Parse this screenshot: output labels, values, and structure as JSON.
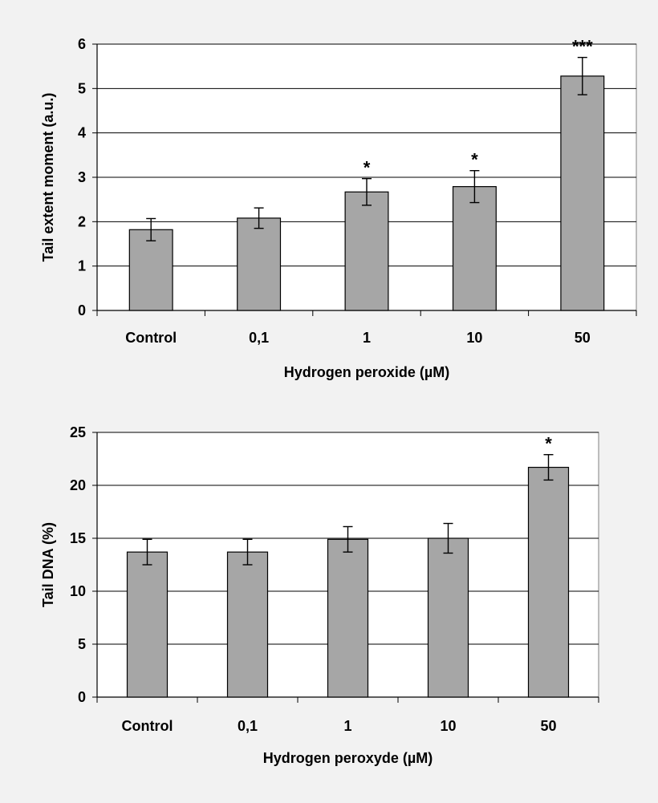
{
  "colors": {
    "background": "#f2f2f2",
    "plot_area": "#ffffff",
    "bar_fill": "#a6a6a6",
    "bar_stroke": "#000000",
    "gridline": "#000000"
  },
  "chart_data": [
    {
      "type": "bar",
      "title": "",
      "categories": [
        "Control",
        "0,1",
        "1",
        "10",
        "50"
      ],
      "values": [
        1.82,
        2.08,
        2.67,
        2.79,
        5.28
      ],
      "error": [
        0.25,
        0.23,
        0.3,
        0.36,
        0.42
      ],
      "significance": [
        "",
        "",
        "*",
        "*",
        "***"
      ],
      "xlabel": "Hydrogen peroxide (µM)",
      "ylabel": "Tail extent moment (a.u.)",
      "ylim": [
        0,
        6
      ],
      "yticks": [
        0,
        1,
        2,
        3,
        4,
        5,
        6
      ],
      "grid": true
    },
    {
      "type": "bar",
      "title": "",
      "categories": [
        "Control",
        "0,1",
        "1",
        "10",
        "50"
      ],
      "values": [
        13.7,
        13.7,
        14.9,
        15.0,
        21.7
      ],
      "error": [
        1.2,
        1.2,
        1.2,
        1.4,
        1.2
      ],
      "significance": [
        "",
        "",
        "",
        "",
        "*"
      ],
      "xlabel": "Hydrogen peroxyde (µM)",
      "ylabel": "Tail DNA (%)",
      "ylim": [
        0,
        25
      ],
      "yticks": [
        0,
        5,
        10,
        15,
        20,
        25
      ],
      "grid": true
    }
  ]
}
